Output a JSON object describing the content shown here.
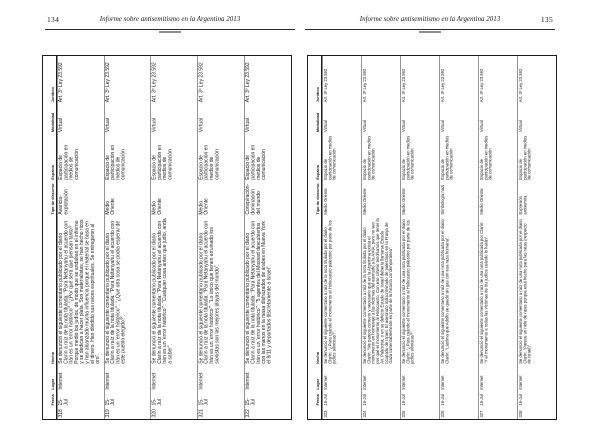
{
  "running_title": "Informe sobre antisemitismo en la Argentina 2013",
  "pages": [
    {
      "number": "134"
    },
    {
      "number": "135"
    }
  ],
  "table_headers": {
    "num": "",
    "fecha": "Fecha",
    "lugar": "Lugar",
    "hecho": "Hecho",
    "tipo": "Tipo de discurso",
    "espacio": "Espacio",
    "modalidad": "Modalidad",
    "juridico": "Jurídico"
  },
  "rows": [
    {
      "num": "318",
      "fecha": "15-Jul",
      "lugar": "Internet",
      "hecho": "Se denunció el siguiente comentario publicado por el diario Clarín a raíz de la nota titulada: “Para Netanyahu el acuerdo con Irán es un ‘error histórico’”: “¿Por qué será que piensan tanto? Porque medio los judíos, de modo que se andaban en el infierno y se dedican a hacer plata. Son materialistas, se han hecho ricos y han alcanzado mucha influencia porque el material se basa en el dinero. Han dividido sus raíces espirituales. Se entregaron al oro”.",
      "tipo": "Avaricia-explotación",
      "espacio": "Espacio de participación en medios de comunicación",
      "modalidad": "Virtual",
      "juridico": "Art. 3º Ley 23.592"
    },
    {
      "num": "319",
      "fecha": "15-Jul",
      "lugar": "Internet",
      "hecho": "Se denunció el siguiente comentario publicado por el diario Clarín a raíz de la nota titulada: “Para Netanyahu el acuerdo con Irán es un ‘error histórico’”: “¿Qué otra cosa se podía esperar de este pueblo elegido?”.",
      "tipo": "Medio Oriente",
      "espacio": "Espacio de participación en medios de comunicación",
      "modalidad": "Virtual",
      "juridico": "Art. 3º Ley 23.592"
    },
    {
      "num": "320",
      "fecha": "15-Jul",
      "lugar": "Internet",
      "hecho": "Se denunció el siguiente comentario publicado por el diario Clarín a raíz de la nota titulada: “Para Netanyahu el acuerdo con Irán es un ‘error histórico’”: “Cualquier cosa antes que judío, anda a saber”.",
      "tipo": "Medio Oriente",
      "espacio": "Espacio de participación en medios de comunicación",
      "modalidad": "Virtual",
      "juridico": "Art. 3º Ley 23.592"
    },
    {
      "num": "321",
      "fecha": "15-Jul",
      "lugar": "Internet",
      "hecho": "Se denunció el siguiente comentario publicado por el diario Clarín a raíz de la nota titulada: “Para Netanyahu el acuerdo con Irán es un ‘error histórico’”: “Lo único que tienen arruinado los sionistas son las mejores playas del mundo”.",
      "tipo": "Medio Oriente",
      "espacio": "Espacio de participación en medios de comunicación",
      "modalidad": "Virtual",
      "juridico": "Art. 3º Ley 23.592"
    },
    {
      "num": "322",
      "fecha": "15-Jul",
      "lugar": "Internet",
      "hecho": "Se denunció el siguiente comentario publicado por el diario Clarín a raíz de la nota titulada: “Para Netanyahu el acuerdo con Irán es un ‘error histórico’”: “5 agentes del Mossad descubiertos con las manos en la masa disfrazados de árabes en Nueva York el 9/11 y deportados discretamente a Israel”.",
      "tipo": "Conspiración-dominación del mundo",
      "espacio": "Espacio de participación en medios de comunicación",
      "modalidad": "Virtual",
      "juridico": "Art. 3º Ley 23.592"
    },
    {
      "num": "323",
      "fecha": "16-Jul",
      "lugar": "Internet",
      "hecho": "Se denunció el siguiente comentario a raíz de la nota titulada por el diario Clarín: “¿Para cuándo el monumento al Holocausto palestino por parte de los judíos sionistas?”.",
      "tipo": "Medio Oriente",
      "espacio": "Espacio de participación en medios de comunicación",
      "modalidad": "Virtual",
      "juridico": "Art. 3º Ley 23.592"
    },
    {
      "num": "324",
      "fecha": "16-Jul",
      "lugar": "Internet",
      "hecho": "Se denunció el siguiente comentario a raíz de la nota titulada por el diario Clarín: “Me parece correcto y necesario que en la Argentina exista el monumento en homenaje a las víctimas del atentado a la AMIA, pero no veo por qué el monumento al Holocausto. Con ese criterio tendríamos que tener la Av. Palestina, o en su defecto Estado de Israel debería llamarse Estado ocupado de Israel. El asesinato indiscriminado de palestinos en la Franja de Gaza lamentablemente es parte de la historia contemporánea”.",
      "tipo": "Medio Oriente",
      "espacio": "Espacio de participación en medios de comunicación",
      "modalidad": "Virtual",
      "juridico": "Art. 3º Ley 23.592"
    },
    {
      "num": "325",
      "fecha": "16-Jul",
      "lugar": "Internet",
      "hecho": "Se denunció el siguiente comentario a raíz de una nota publicada por el diario Clarín: “¿Para cuándo el monumento al Holocausto palestino por parte de los judíos sionistas?”.",
      "tipo": "Medio Oriente",
      "espacio": "Espacio de participación en medios de comunicación",
      "modalidad": "Virtual",
      "juridico": "Art. 3º Ley 23.592"
    },
    {
      "num": "326",
      "fecha": "16-Jul",
      "lugar": "Internet",
      "hecho": "Se denunció el siguiente comentario a raíz de una nota publicada por el diario Clarín: “Lástima que Adolfo se quedó sin gas con esa raza humana”.",
      "tipo": "Simbología nazi",
      "espacio": "Espacio de participación en medios de comunicación",
      "modalidad": "Virtual",
      "juridico": "Art. 3º Ley 23.592"
    },
    {
      "num": "327",
      "fecha": "16-Jul",
      "lugar": "Internet",
      "hecho": "Se denunció el siguiente comentario a raíz de una nota publicada por Clarín: “Y el monumento a todas las víctimas de los judíos cuándo lo harán”.",
      "tipo": "Medio Oriente",
      "espacio": "Espacio de participación en medios de comunicación",
      "modalidad": "Virtual",
      "juridico": "Art. 3º Ley 23.592"
    },
    {
      "num": "328",
      "fecha": "16-Jul",
      "lugar": "Internet",
      "hecho": "Se denunció el siguiente comentario a raíz de una nota publicada por el diario Clarín: “Parece un nido de ratas porque está hecho para las ratas (respecto de Israel)”.",
      "tipo": "Expresión antisemita",
      "espacio": "Espacio de participación en medios de comunicación",
      "modalidad": "Virtual",
      "juridico": "Art. 3º Ley 23.592"
    }
  ]
}
